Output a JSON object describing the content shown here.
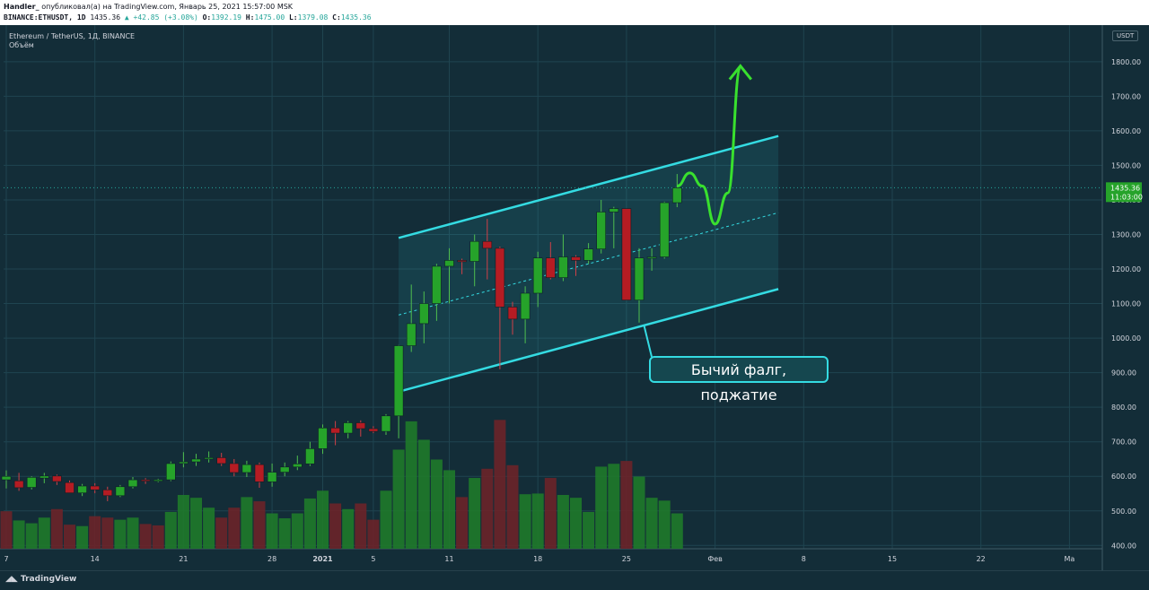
{
  "header": {
    "publisher": "Handler_",
    "publish_text": "опубликовал(а) на TradingView.com, Январь 25, 2021 15:57:00 MSK",
    "symbol": "BINANCE:ETHUSDT, 1D",
    "last": "1435.36",
    "change": "▲ +42.85 (+3.08%)",
    "o_label": "O:",
    "o": "1392.19",
    "h_label": "H:",
    "h": "1475.00",
    "l_label": "L:",
    "l": "1379.08",
    "c_label": "C:",
    "c": "1435.36"
  },
  "legend": {
    "title": "Ethereum / TetherUS, 1Д, BINANCE",
    "volume": "Объём"
  },
  "price_axis": {
    "currency": "USDT",
    "last_price_label": "1435.36",
    "countdown_label": "11:03:00"
  },
  "annotation": "Бычий фалг, поджатие",
  "footer": {
    "brand": "TradingView"
  },
  "colors": {
    "up": "#26a32a",
    "down": "#b51c23",
    "channel": "#34dbe2",
    "projection": "#39e02e",
    "background": "#132d38"
  },
  "chart_data": {
    "type": "candlestick",
    "ylim": [
      380,
      1880
    ],
    "y_ticks": [
      400,
      500,
      600,
      700,
      800,
      900,
      1000,
      1100,
      1200,
      1300,
      1400,
      1500,
      1600,
      1700,
      1800
    ],
    "x_labels": [
      "7",
      "14",
      "21",
      "28",
      "2021",
      "5",
      "11",
      "18",
      "25",
      "Фев",
      "8",
      "15",
      "22",
      "Ма"
    ],
    "x_label_days": [
      0,
      7,
      14,
      21,
      25,
      29,
      35,
      42,
      49,
      56,
      63,
      70,
      77,
      84
    ],
    "first_day": "2020-12-07",
    "candles": [
      {
        "o": 590,
        "h": 617,
        "l": 565,
        "c": 600
      },
      {
        "o": 587,
        "h": 610,
        "l": 558,
        "c": 567
      },
      {
        "o": 568,
        "h": 600,
        "l": 562,
        "c": 597
      },
      {
        "o": 595,
        "h": 610,
        "l": 580,
        "c": 601
      },
      {
        "o": 601,
        "h": 605,
        "l": 575,
        "c": 585
      },
      {
        "o": 582,
        "h": 588,
        "l": 555,
        "c": 552
      },
      {
        "o": 552,
        "h": 578,
        "l": 543,
        "c": 572
      },
      {
        "o": 572,
        "h": 580,
        "l": 551,
        "c": 561
      },
      {
        "o": 561,
        "h": 570,
        "l": 528,
        "c": 544
      },
      {
        "o": 544,
        "h": 575,
        "l": 540,
        "c": 570
      },
      {
        "o": 570,
        "h": 598,
        "l": 565,
        "c": 590
      },
      {
        "o": 590,
        "h": 595,
        "l": 578,
        "c": 589
      },
      {
        "o": 589,
        "h": 593,
        "l": 583,
        "c": 590
      },
      {
        "o": 590,
        "h": 643,
        "l": 586,
        "c": 637
      },
      {
        "o": 637,
        "h": 670,
        "l": 626,
        "c": 642
      },
      {
        "o": 642,
        "h": 665,
        "l": 630,
        "c": 650
      },
      {
        "o": 650,
        "h": 672,
        "l": 640,
        "c": 654
      },
      {
        "o": 654,
        "h": 668,
        "l": 630,
        "c": 637
      },
      {
        "o": 637,
        "h": 650,
        "l": 600,
        "c": 611
      },
      {
        "o": 611,
        "h": 645,
        "l": 598,
        "c": 634
      },
      {
        "o": 634,
        "h": 640,
        "l": 567,
        "c": 584
      },
      {
        "o": 584,
        "h": 637,
        "l": 570,
        "c": 612
      },
      {
        "o": 612,
        "h": 640,
        "l": 600,
        "c": 627
      },
      {
        "o": 627,
        "h": 660,
        "l": 618,
        "c": 636
      },
      {
        "o": 636,
        "h": 700,
        "l": 630,
        "c": 680
      },
      {
        "o": 680,
        "h": 750,
        "l": 665,
        "c": 740
      },
      {
        "o": 740,
        "h": 760,
        "l": 690,
        "c": 725
      },
      {
        "o": 725,
        "h": 760,
        "l": 710,
        "c": 755
      },
      {
        "o": 755,
        "h": 762,
        "l": 715,
        "c": 738
      },
      {
        "o": 738,
        "h": 745,
        "l": 725,
        "c": 730
      },
      {
        "o": 730,
        "h": 780,
        "l": 720,
        "c": 775
      },
      {
        "o": 775,
        "h": 980,
        "l": 710,
        "c": 978
      },
      {
        "o": 978,
        "h": 1155,
        "l": 960,
        "c": 1042
      },
      {
        "o": 1042,
        "h": 1135,
        "l": 985,
        "c": 1100
      },
      {
        "o": 1100,
        "h": 1215,
        "l": 1050,
        "c": 1208
      },
      {
        "o": 1208,
        "h": 1260,
        "l": 1100,
        "c": 1225
      },
      {
        "o": 1225,
        "h": 1230,
        "l": 1185,
        "c": 1222
      },
      {
        "o": 1222,
        "h": 1300,
        "l": 1150,
        "c": 1280
      },
      {
        "o": 1280,
        "h": 1345,
        "l": 1170,
        "c": 1260
      },
      {
        "o": 1260,
        "h": 1265,
        "l": 910,
        "c": 1090
      },
      {
        "o": 1090,
        "h": 1105,
        "l": 1010,
        "c": 1055
      },
      {
        "o": 1055,
        "h": 1150,
        "l": 985,
        "c": 1130
      },
      {
        "o": 1130,
        "h": 1250,
        "l": 1090,
        "c": 1232
      },
      {
        "o": 1232,
        "h": 1278,
        "l": 1170,
        "c": 1175
      },
      {
        "o": 1175,
        "h": 1300,
        "l": 1165,
        "c": 1235
      },
      {
        "o": 1235,
        "h": 1240,
        "l": 1180,
        "c": 1225
      },
      {
        "o": 1225,
        "h": 1275,
        "l": 1215,
        "c": 1258
      },
      {
        "o": 1258,
        "h": 1400,
        "l": 1245,
        "c": 1365
      },
      {
        "o": 1365,
        "h": 1380,
        "l": 1260,
        "c": 1375
      },
      {
        "o": 1375,
        "h": 1375,
        "l": 1110,
        "c": 1110
      },
      {
        "o": 1110,
        "h": 1260,
        "l": 1045,
        "c": 1232
      },
      {
        "o": 1232,
        "h": 1260,
        "l": 1195,
        "c": 1235
      },
      {
        "o": 1235,
        "h": 1395,
        "l": 1230,
        "c": 1392
      },
      {
        "o": 1392,
        "h": 1475,
        "l": 1379,
        "c": 1435
      }
    ],
    "volume": [
      {
        "v": 53,
        "up": false
      },
      {
        "v": 40,
        "up": true
      },
      {
        "v": 36,
        "up": true
      },
      {
        "v": 44,
        "up": true
      },
      {
        "v": 56,
        "up": false
      },
      {
        "v": 34,
        "up": false
      },
      {
        "v": 32,
        "up": true
      },
      {
        "v": 46,
        "up": false
      },
      {
        "v": 44,
        "up": false
      },
      {
        "v": 41,
        "up": true
      },
      {
        "v": 44,
        "up": true
      },
      {
        "v": 35,
        "up": false
      },
      {
        "v": 33,
        "up": false
      },
      {
        "v": 52,
        "up": true
      },
      {
        "v": 76,
        "up": true
      },
      {
        "v": 72,
        "up": true
      },
      {
        "v": 58,
        "up": true
      },
      {
        "v": 44,
        "up": false
      },
      {
        "v": 58,
        "up": false
      },
      {
        "v": 73,
        "up": true
      },
      {
        "v": 67,
        "up": false
      },
      {
        "v": 50,
        "up": true
      },
      {
        "v": 43,
        "up": true
      },
      {
        "v": 50,
        "up": true
      },
      {
        "v": 71,
        "up": true
      },
      {
        "v": 82,
        "up": true
      },
      {
        "v": 64,
        "up": false
      },
      {
        "v": 56,
        "up": true
      },
      {
        "v": 64,
        "up": false
      },
      {
        "v": 41,
        "up": false
      },
      {
        "v": 82,
        "up": true
      },
      {
        "v": 140,
        "up": true
      },
      {
        "v": 180,
        "up": true
      },
      {
        "v": 154,
        "up": true
      },
      {
        "v": 126,
        "up": true
      },
      {
        "v": 111,
        "up": true
      },
      {
        "v": 73,
        "up": false
      },
      {
        "v": 100,
        "up": true
      },
      {
        "v": 113,
        "up": false
      },
      {
        "v": 182,
        "up": false
      },
      {
        "v": 118,
        "up": false
      },
      {
        "v": 77,
        "up": true
      },
      {
        "v": 78,
        "up": true
      },
      {
        "v": 100,
        "up": false
      },
      {
        "v": 76,
        "up": true
      },
      {
        "v": 72,
        "up": true
      },
      {
        "v": 52,
        "up": true
      },
      {
        "v": 116,
        "up": true
      },
      {
        "v": 120,
        "up": true
      },
      {
        "v": 124,
        "up": false
      },
      {
        "v": 102,
        "up": true
      },
      {
        "v": 72,
        "up": true
      },
      {
        "v": 68,
        "up": true
      },
      {
        "v": 50,
        "up": true
      }
    ],
    "volume_max": 190,
    "channel": {
      "upper": {
        "start_day": 31,
        "start_price": 1290,
        "end_day": 61,
        "end_price": 1585
      },
      "lower": {
        "start_day": 31,
        "start_price": 845,
        "end_day": 61,
        "end_price": 1142
      },
      "mid_start_price": 1067,
      "mid_end_price": 1363
    },
    "projection": [
      {
        "day": 53,
        "price": 1440
      },
      {
        "day": 54,
        "price": 1478
      },
      {
        "day": 55,
        "price": 1440
      },
      {
        "day": 56,
        "price": 1330
      },
      {
        "day": 57,
        "price": 1420
      },
      {
        "day": 58,
        "price": 1780
      }
    ]
  }
}
